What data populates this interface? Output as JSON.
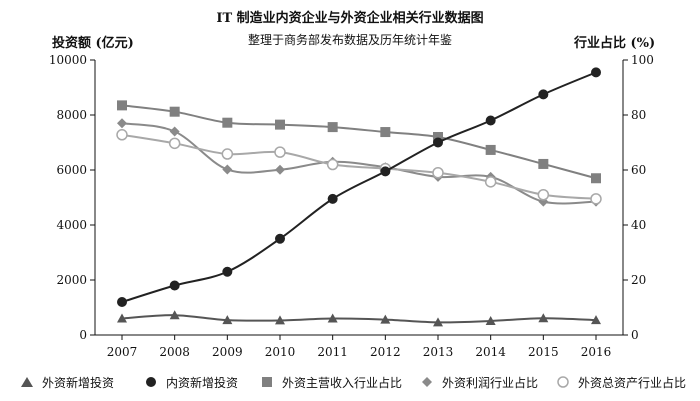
{
  "header": {
    "title": "IT 制造业内资企业与外资企业相关行业数据图",
    "subtitle": "整理于商务部发布数据及历年统计年鉴"
  },
  "chart_data": {
    "type": "line",
    "categories": [
      "2007",
      "2008",
      "2009",
      "2010",
      "2011",
      "2012",
      "2013",
      "2014",
      "2015",
      "2016"
    ],
    "y_left": {
      "label": "投资额 (亿元)",
      "range": [
        0,
        10000
      ],
      "ticks": [
        "0",
        "2000",
        "4000",
        "6000",
        "8000",
        "10000"
      ]
    },
    "y_right": {
      "label": "行业占比 (%)",
      "range": [
        0,
        100
      ],
      "ticks": [
        "0",
        "20",
        "40",
        "60",
        "80",
        "100"
      ]
    },
    "series": [
      {
        "name": "外资新增投资",
        "axis": "left",
        "marker": "triangle",
        "color": "#555555",
        "values": [
          600,
          720,
          540,
          530,
          600,
          560,
          460,
          510,
          610,
          540
        ]
      },
      {
        "name": "内资新增投资",
        "axis": "left",
        "marker": "circle",
        "color": "#222222",
        "values": [
          1200,
          1800,
          2300,
          3500,
          4950,
          5950,
          7000,
          7800,
          8750,
          9550
        ]
      },
      {
        "name": "外资主营收入行业占比",
        "axis": "right",
        "marker": "square",
        "color": "#808080",
        "values": [
          83.5,
          81.2,
          77.2,
          76.5,
          75.6,
          73.8,
          72,
          67.3,
          62.2,
          57
        ]
      },
      {
        "name": "外资利润行业占比",
        "axis": "right",
        "marker": "diamond",
        "color": "#8a8a8a",
        "values": [
          77,
          74,
          60.2,
          60.1,
          63,
          61,
          57.5,
          57.5,
          48.5,
          48.5
        ]
      },
      {
        "name": "外资总资产行业占比",
        "axis": "right",
        "marker": "open-circle",
        "color": "#a8a8a8",
        "values": [
          72.8,
          69.7,
          65.8,
          66.5,
          62,
          60.5,
          59,
          55.7,
          51,
          49.5
        ]
      }
    ],
    "legend_position": "bottom",
    "grid": false
  }
}
